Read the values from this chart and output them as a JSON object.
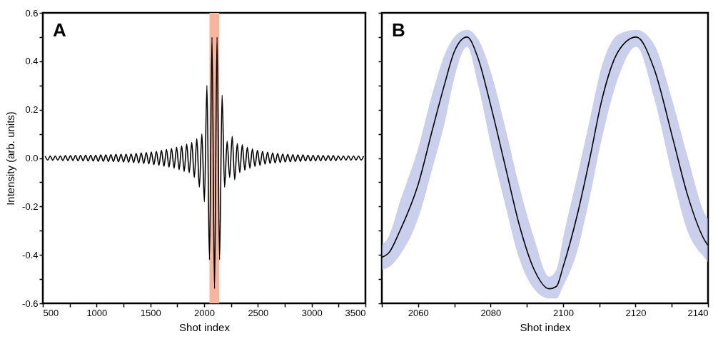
{
  "chart_data": [
    {
      "type": "line",
      "annotations": [
        "A"
      ],
      "xlabel": "Shot index",
      "ylabel": "Intensity (arb. units)",
      "xlim": [
        500,
        3500
      ],
      "xticks": [
        500,
        {
          "value": 750,
          "label": null
        },
        1000,
        {
          "value": 1250,
          "label": null
        },
        1500,
        {
          "value": 1750,
          "label": null
        },
        2000,
        {
          "value": 2250,
          "label": null
        },
        2500,
        {
          "value": 2750,
          "label": null
        },
        3000,
        {
          "value": 3250,
          "label": null
        },
        3500
      ],
      "ylim": [
        -0.6,
        0.6
      ],
      "yticks": [
        -0.6,
        {
          "value": -0.5,
          "label": null
        },
        -0.4,
        {
          "value": -0.3,
          "label": null
        },
        -0.2,
        {
          "value": -0.1,
          "label": null
        },
        {
          "value": 0,
          "label": "0.0"
        },
        {
          "value": 0.1,
          "label": null
        },
        0.2,
        {
          "value": 0.3,
          "label": null
        },
        0.4,
        {
          "value": 0.5,
          "label": null
        },
        0.6
      ],
      "bands": [
        {
          "axis": "x",
          "from": 2050,
          "to": 2140,
          "color": "#f7b59c"
        }
      ],
      "x": [
        522,
        545.5,
        569,
        592.5,
        616,
        639.5,
        663,
        686.5,
        710,
        733.5,
        757,
        780.5,
        804,
        827.5,
        851,
        874.5,
        898,
        921.5,
        945,
        968.5,
        992,
        1015.5,
        1039,
        1062.5,
        1086,
        1109.5,
        1133,
        1156.5,
        1180,
        1203.5,
        1227,
        1250.5,
        1274,
        1297.5,
        1321,
        1344.5,
        1368,
        1391.5,
        1415,
        1438.5,
        1462,
        1485.5,
        1509,
        1532.5,
        1556,
        1579.5,
        1603,
        1626.5,
        1650,
        1673.5,
        1697,
        1720.5,
        1744,
        1767.5,
        1791,
        1814.5,
        1838,
        1861.5,
        1885,
        1908.5,
        1932,
        1955.5,
        1979,
        2002.5,
        2026,
        2049.5,
        2073,
        2096.5,
        2120,
        2143.5,
        2167,
        2190.5,
        2214,
        2237.5,
        2261,
        2284.5,
        2308,
        2331.5,
        2355,
        2378.5,
        2402,
        2425.5,
        2449,
        2472.5,
        2496,
        2519.5,
        2543,
        2566.5,
        2590,
        2613.5,
        2637,
        2660.5,
        2684,
        2707.5,
        2731,
        2754.5,
        2778,
        2801.5,
        2825,
        2848.5,
        2872,
        2895.5,
        2919,
        2942.5,
        2966,
        2989.5,
        3013,
        3036.5,
        3060,
        3083.5,
        3107,
        3130.5,
        3154,
        3177.5,
        3201,
        3224.5,
        3248,
        3271.5,
        3295,
        3318.5,
        3342,
        3365.5,
        3389,
        3412.5,
        3436,
        3459.5,
        3483
      ],
      "series": [
        {
          "color": "#000000",
          "values": [
            0.008,
            -0.008,
            0.008,
            -0.009,
            0.009,
            -0.009,
            0.009,
            -0.01,
            0.01,
            -0.01,
            0.01,
            -0.01,
            0.011,
            -0.011,
            0.011,
            -0.011,
            0.012,
            -0.012,
            0.012,
            -0.012,
            0.012,
            -0.013,
            0.013,
            -0.013,
            0.013,
            -0.014,
            0.014,
            -0.014,
            0.015,
            -0.015,
            0.015,
            -0.016,
            0.016,
            -0.017,
            0.017,
            -0.018,
            0.019,
            -0.02,
            0.021,
            -0.022,
            0.023,
            -0.024,
            0.025,
            -0.027,
            0.028,
            -0.03,
            0.032,
            -0.034,
            0.036,
            -0.038,
            0.04,
            -0.042,
            0.045,
            -0.048,
            0.05,
            -0.055,
            0.058,
            -0.06,
            0.065,
            -0.08,
            0.08,
            -0.12,
            0.1,
            -0.18,
            0.3,
            -0.42,
            0.5,
            -0.54,
            0.5,
            -0.42,
            0.26,
            -0.12,
            0.07,
            -0.08,
            0.09,
            -0.09,
            0.06,
            -0.06,
            0.055,
            -0.05,
            0.045,
            -0.042,
            0.038,
            -0.035,
            0.032,
            -0.03,
            0.028,
            -0.025,
            0.024,
            -0.022,
            0.021,
            -0.02,
            0.019,
            -0.018,
            0.017,
            -0.016,
            0.015,
            -0.015,
            0.014,
            -0.014,
            0.013,
            -0.013,
            0.013,
            -0.012,
            0.012,
            -0.012,
            0.011,
            -0.011,
            0.011,
            -0.011,
            0.01,
            -0.01,
            0.01,
            -0.01,
            0.01,
            -0.01,
            0.009,
            -0.009,
            0.009,
            -0.009,
            0.009,
            -0.009,
            0.009,
            -0.008,
            0.008,
            -0.008,
            0.008
          ]
        }
      ]
    },
    {
      "type": "line",
      "annotations": [
        "B"
      ],
      "xlabel": "Shot index",
      "tick_labels": "x",
      "xlim": [
        2050,
        2140
      ],
      "xticks": [
        {
          "value": 2050,
          "label": null
        },
        2060,
        {
          "value": 2070,
          "label": null
        },
        2080,
        {
          "value": 2090,
          "label": null
        },
        2100,
        {
          "value": 2110,
          "label": null
        },
        2120,
        {
          "value": 2130,
          "label": null
        },
        2140
      ],
      "ylim": [
        -0.6,
        0.6
      ],
      "yticks": [
        -0.6,
        -0.5,
        -0.4,
        -0.3,
        -0.2,
        -0.1,
        0,
        0.1,
        0.2,
        0.3,
        0.4,
        0.5,
        0.6
      ],
      "x": [
        2050,
        2052,
        2055,
        2060,
        2064,
        2067.4,
        2070,
        2073.5,
        2076.6,
        2080,
        2084,
        2088,
        2092,
        2096.2,
        2098.2,
        2100,
        2104,
        2107.4,
        2110.7,
        2115.2,
        2120.2,
        2125.1,
        2130.3,
        2134.3,
        2139.5,
        2140
      ],
      "series": [
        {
          "color": "#000000",
          "values": [
            -0.41,
            -0.39,
            -0.3,
            -0.11,
            0.12,
            0.31,
            0.44,
            0.5,
            0.41,
            0.22,
            -0.03,
            -0.28,
            -0.46,
            -0.54,
            -0.53,
            -0.45,
            -0.23,
            0.0,
            0.24,
            0.44,
            0.5,
            0.37,
            0.08,
            -0.15,
            -0.35,
            -0.36
          ],
          "lower": [
            -0.46,
            -0.45,
            -0.4,
            -0.25,
            -0.04,
            0.15,
            0.33,
            0.46,
            0.3,
            0.06,
            -0.19,
            -0.42,
            -0.54,
            -0.58,
            -0.58,
            -0.53,
            -0.38,
            -0.16,
            0.08,
            0.33,
            0.46,
            0.25,
            -0.08,
            -0.3,
            -0.42,
            -0.43
          ],
          "upper": [
            -0.36,
            -0.32,
            -0.18,
            0.04,
            0.27,
            0.43,
            0.5,
            0.53,
            0.49,
            0.36,
            0.13,
            -0.12,
            -0.33,
            -0.49,
            -0.46,
            -0.33,
            -0.07,
            0.16,
            0.38,
            0.51,
            0.53,
            0.47,
            0.23,
            0.01,
            -0.24,
            -0.25
          ]
        }
      ]
    }
  ]
}
